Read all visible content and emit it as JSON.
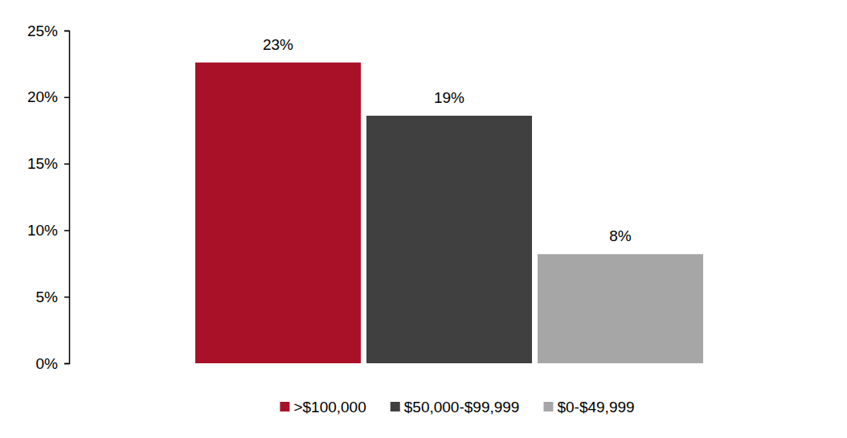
{
  "chart_data": {
    "type": "bar",
    "categories": [
      null
    ],
    "series": [
      {
        "name": ">$100,000",
        "color": "#a91128",
        "values": [
          22.6
        ],
        "value_labels": [
          "23%"
        ]
      },
      {
        "name": "$50,000-$99,999",
        "color": "#404040",
        "values": [
          18.6
        ],
        "value_labels": [
          "19%"
        ]
      },
      {
        "name": "$0-$49,999",
        "color": "#a6a6a6",
        "values": [
          8.2
        ],
        "value_labels": [
          "8%"
        ]
      }
    ],
    "ylim": [
      0,
      25
    ],
    "yticks": [
      {
        "value": 0,
        "label": "0%"
      },
      {
        "value": 5,
        "label": "5%"
      },
      {
        "value": 10,
        "label": "10%"
      },
      {
        "value": 15,
        "label": "15%"
      },
      {
        "value": 20,
        "label": "20%"
      },
      {
        "value": 25,
        "label": "25%"
      }
    ],
    "grid": false,
    "legend": "bottom",
    "data_labels": true,
    "tick_labels": "y"
  }
}
